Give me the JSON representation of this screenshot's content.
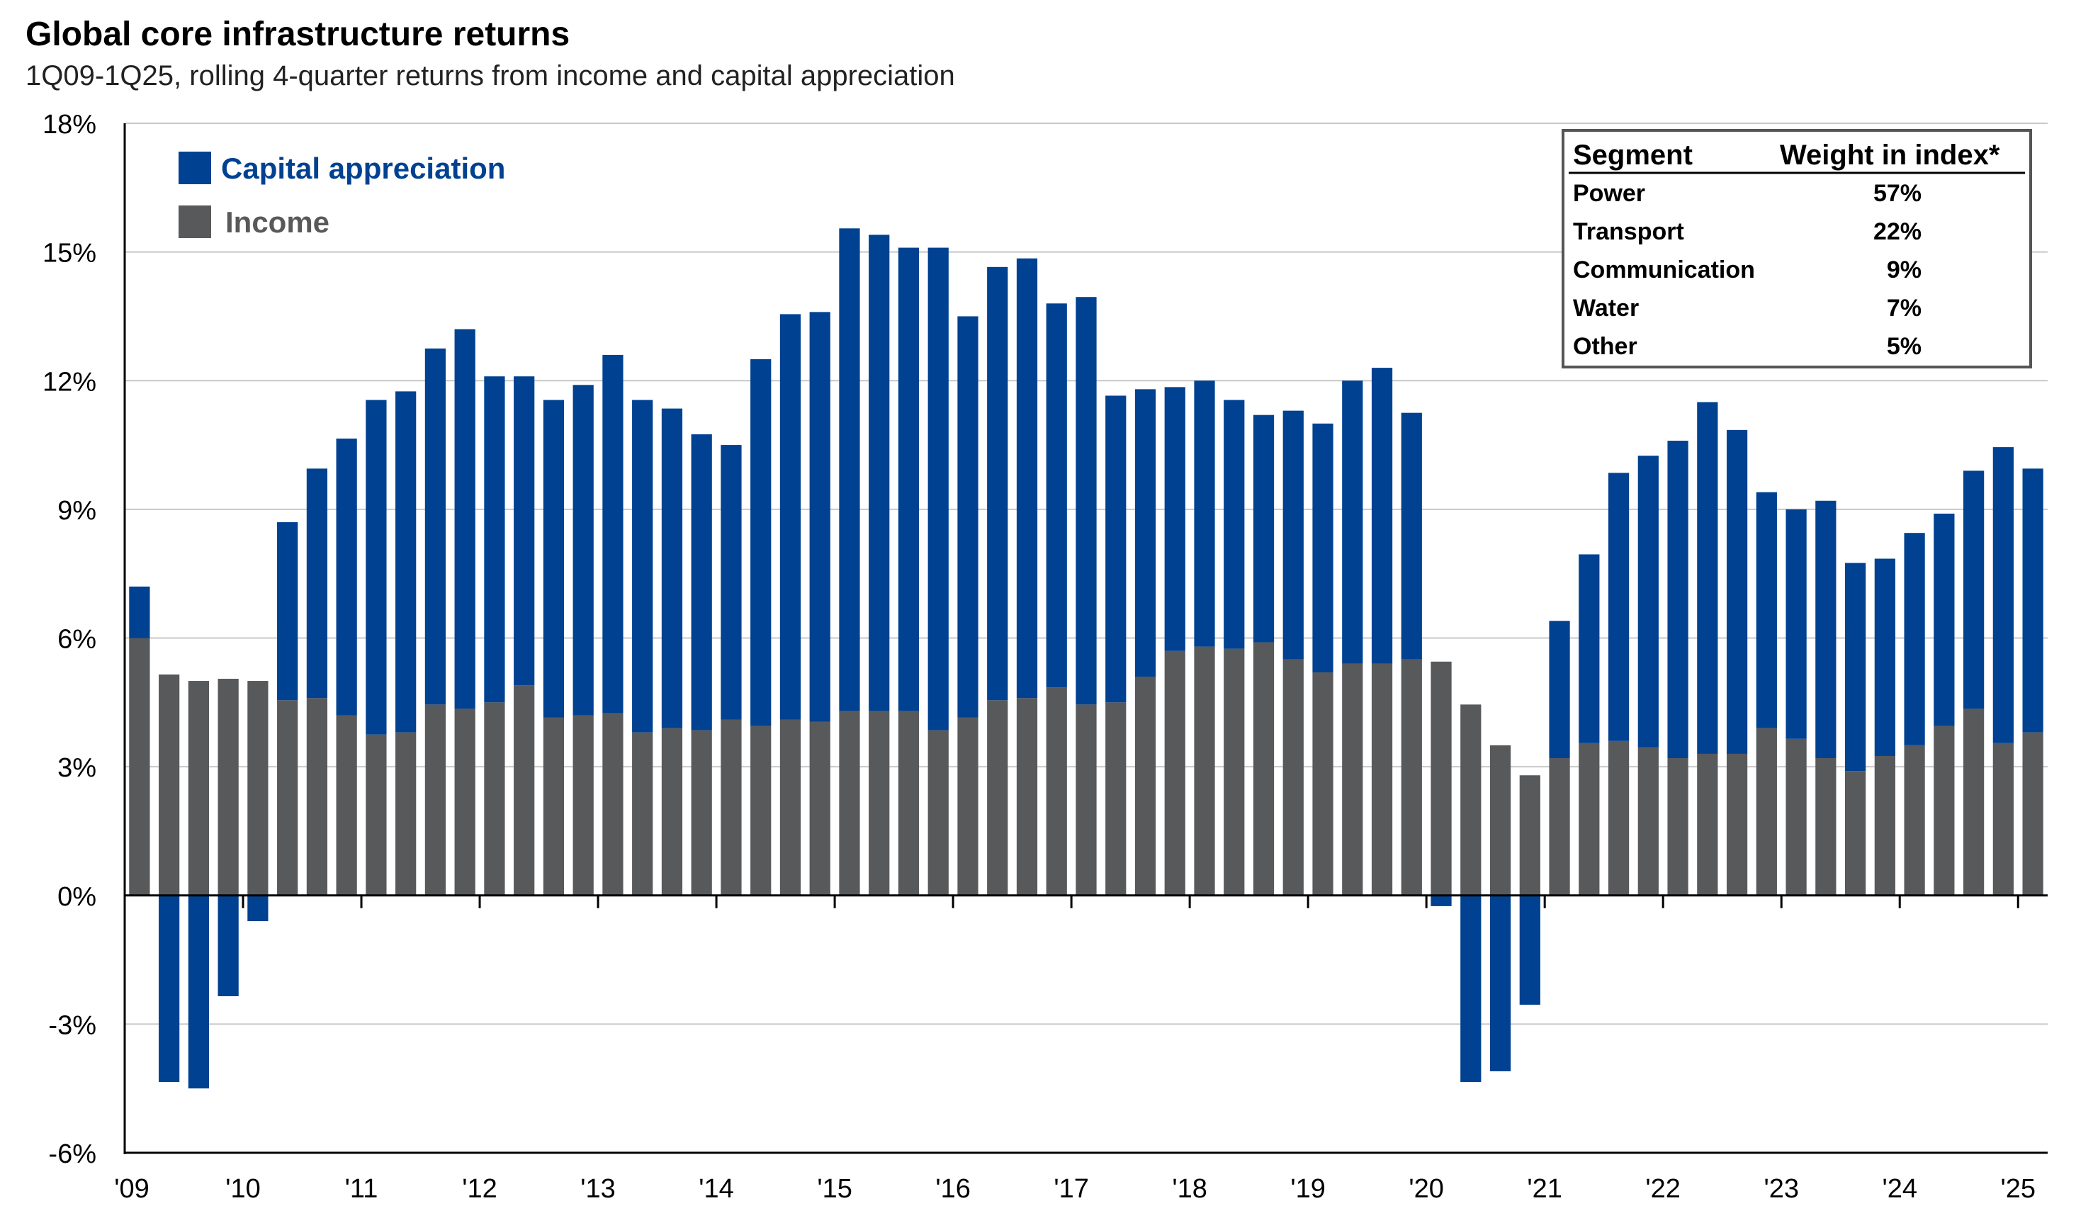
{
  "chart_data": {
    "type": "bar",
    "stacked": true,
    "title": "Global core infrastructure returns",
    "subtitle": "1Q09-1Q25, rolling 4-quarter returns from income and capital appreciation",
    "ylabel": "",
    "xlabel": "",
    "ylim": [
      -6,
      18
    ],
    "yticks": [
      -6,
      -3,
      0,
      3,
      6,
      9,
      12,
      15,
      18
    ],
    "ytick_labels": [
      "-6%",
      "-3%",
      "0%",
      "3%",
      "6%",
      "9%",
      "12%",
      "15%",
      "18%"
    ],
    "xtick_labels": [
      "'09",
      "'10",
      "'11",
      "'12",
      "'13",
      "'14",
      "'15",
      "'16",
      "'17",
      "'18",
      "'19",
      "'20",
      "'21",
      "'22",
      "'23",
      "'24",
      "'25"
    ],
    "grid": true,
    "legend_position": "top-left",
    "series": [
      {
        "name": "Income",
        "color": "#58595b",
        "values": [
          6.0,
          5.15,
          5.0,
          5.05,
          5.0,
          4.55,
          4.6,
          4.2,
          3.75,
          3.8,
          4.45,
          4.35,
          4.5,
          4.9,
          4.15,
          4.2,
          4.25,
          3.8,
          3.9,
          3.85,
          4.1,
          3.95,
          4.1,
          4.05,
          4.3,
          4.3,
          4.3,
          3.85,
          4.15,
          4.55,
          4.6,
          4.85,
          4.45,
          4.5,
          5.1,
          5.7,
          5.8,
          5.75,
          5.9,
          5.5,
          5.2,
          5.4,
          5.4,
          5.5,
          5.45,
          4.45,
          3.5,
          2.8,
          3.2,
          3.55,
          3.6,
          3.45,
          3.2,
          3.3,
          3.3,
          3.9,
          3.65,
          3.2,
          2.9,
          3.25,
          3.5,
          3.95,
          4.35,
          3.55,
          3.8
        ]
      },
      {
        "name": "Capital appreciation",
        "color": "#004191",
        "values": [
          1.2,
          -4.35,
          -4.5,
          -2.35,
          -0.6,
          4.15,
          5.35,
          6.45,
          7.8,
          7.95,
          8.3,
          8.85,
          7.6,
          7.2,
          7.4,
          7.7,
          8.35,
          7.75,
          7.45,
          6.9,
          6.4,
          8.55,
          9.45,
          9.55,
          11.25,
          11.1,
          10.8,
          11.25,
          9.35,
          10.1,
          10.25,
          8.95,
          9.5,
          7.15,
          6.7,
          6.15,
          6.2,
          5.8,
          5.3,
          5.8,
          5.8,
          6.6,
          6.9,
          5.75,
          -0.25,
          -4.35,
          -4.1,
          -2.55,
          3.2,
          4.4,
          6.25,
          6.8,
          7.4,
          8.2,
          7.55,
          5.5,
          5.35,
          6.0,
          4.85,
          4.6,
          4.95,
          4.95,
          5.55,
          6.9,
          6.15
        ]
      }
    ],
    "inset_table": {
      "headers": [
        "Segment",
        "Weight in index*"
      ],
      "rows": [
        [
          "Power",
          "57%"
        ],
        [
          "Transport",
          "22%"
        ],
        [
          "Communication",
          "9%"
        ],
        [
          "Water",
          "7%"
        ],
        [
          "Other",
          "5%"
        ]
      ]
    }
  }
}
